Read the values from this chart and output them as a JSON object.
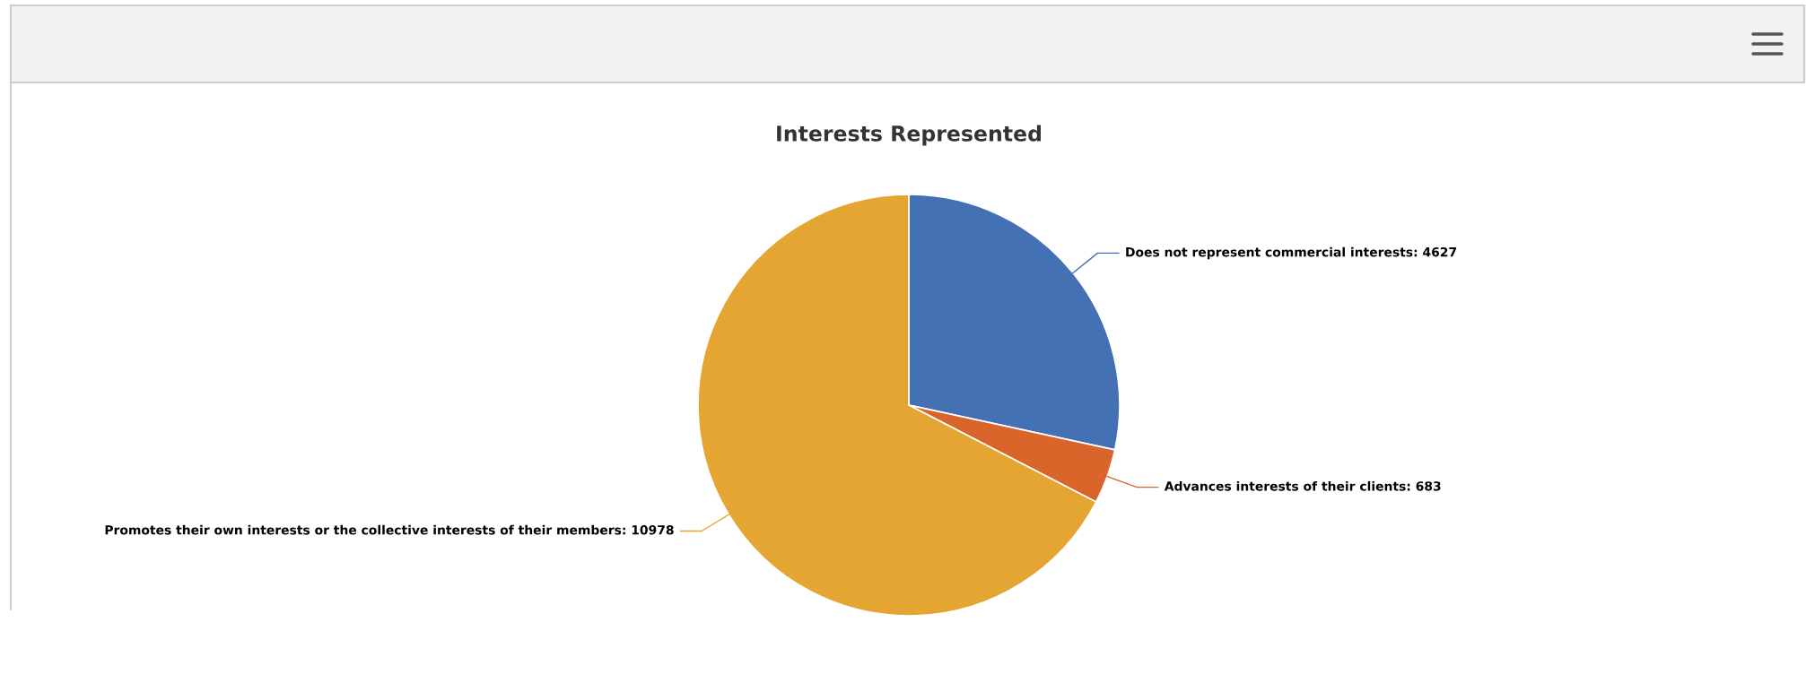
{
  "chart_data": {
    "type": "pie",
    "title": "Interests Represented",
    "categories": [
      "Does not represent commercial interests",
      "Advances interests of their clients",
      "Promotes their own interests or the collective interests of their members"
    ],
    "values": [
      4627,
      683,
      10978
    ],
    "colors": [
      "#4470b4",
      "#d9652b",
      "#e5a532"
    ],
    "value_labels": [
      ": 4627",
      ": 683",
      ": 10978"
    ]
  }
}
